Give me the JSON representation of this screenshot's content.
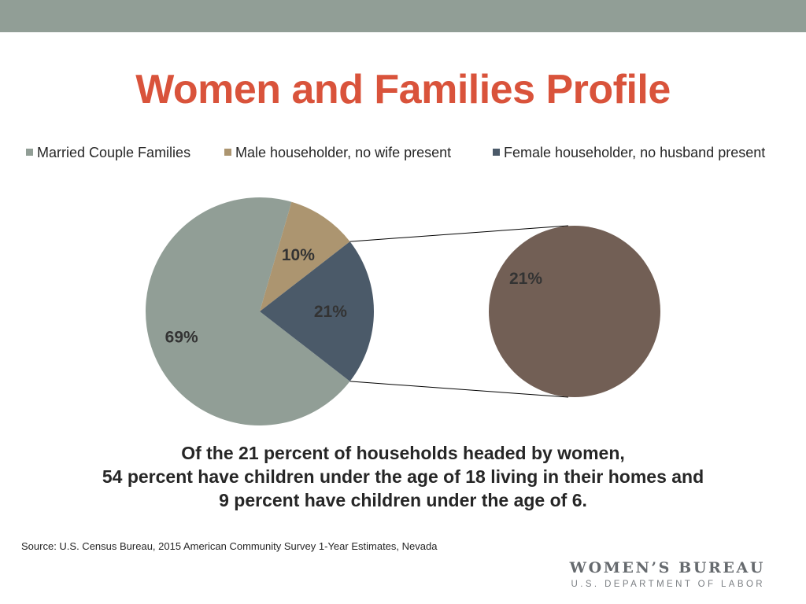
{
  "slide": {
    "title": "Women and Families Profile",
    "caption_lines": [
      "Of the 21 percent of households headed by women,",
      "54 percent have children under the age of 18 living in their homes and",
      "9 percent have children under the age of 6."
    ],
    "source": "Source: U.S. Census Bureau, 2015 American Community Survey 1-Year Estimates, Nevada",
    "logo": {
      "main": "WOMEN’S BUREAU",
      "sub": "U.S. DEPARTMENT OF LABOR"
    }
  },
  "colors": {
    "header_bar": "#919e96",
    "title": "#d9533b",
    "married": "#919e96",
    "male": "#ac9570",
    "female_main": "#4b5a69",
    "female_detail": "#725f55",
    "connector": "#000000"
  },
  "chart_data": {
    "type": "pie",
    "subtype": "pie-of-pie",
    "title": "",
    "legend_position": "top",
    "series": [
      {
        "name": "Married Couple Families",
        "value": 69,
        "label": "69%",
        "color": "#919e96"
      },
      {
        "name": "Male householder, no wife present",
        "value": 10,
        "label": "10%",
        "color": "#ac9570"
      },
      {
        "name": "Female householder, no husband present",
        "value": 21,
        "label": "21%",
        "color": "#4b5a69"
      }
    ],
    "secondary_pie": {
      "source_series": "Female householder, no husband present",
      "value": 21,
      "label": "21%",
      "color": "#725f55"
    }
  }
}
